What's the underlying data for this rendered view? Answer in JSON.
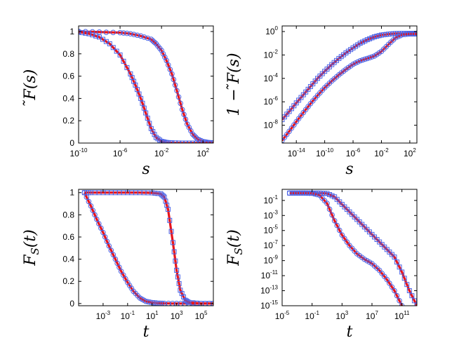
{
  "colors": {
    "fit_line": "#e8141b",
    "marker": "#4a62e6",
    "axes": "#000000"
  },
  "chart_data": [
    {
      "type": "line",
      "xlabel": "s",
      "ylabel": "̃F(s)",
      "xscale": "log",
      "yscale": "linear",
      "xlim": [
        1e-10,
        1000
      ],
      "ylim": [
        0,
        1.05
      ],
      "xticks": [
        {
          "base": "10",
          "exp": "-10"
        },
        {
          "base": "10",
          "exp": "-6"
        },
        {
          "base": "10",
          "exp": "-2"
        },
        {
          "base": "10",
          "exp": "2"
        }
      ],
      "yticks": [
        "0",
        "0.2",
        "0.4",
        "0.6",
        "0.8",
        "1"
      ],
      "grid": false,
      "series": [
        {
          "marker": "circle",
          "line": "solid",
          "x": [
            1e-10,
            1e-08,
            1e-06,
            1e-05,
            0.0001,
            0.001,
            0.003,
            0.01,
            0.03,
            0.1,
            0.3,
            1,
            3,
            10,
            30,
            100,
            300,
            1000
          ],
          "y": [
            1.0,
            0.995,
            0.99,
            0.98,
            0.96,
            0.93,
            0.89,
            0.83,
            0.74,
            0.62,
            0.47,
            0.3,
            0.17,
            0.08,
            0.035,
            0.014,
            0.005,
            0.002
          ]
        },
        {
          "marker": "square",
          "line": "solid",
          "x": [
            1e-10,
            1e-09,
            1e-08,
            1e-07,
            1e-06,
            1e-05,
            3e-05,
            0.0001,
            0.0003,
            0.001,
            0.003,
            0.01,
            0.03,
            0.1,
            1,
            10,
            100,
            1000
          ],
          "y": [
            0.995,
            0.98,
            0.95,
            0.89,
            0.79,
            0.62,
            0.52,
            0.4,
            0.27,
            0.13,
            0.05,
            0.015,
            0.005,
            0.002,
            0.0,
            0.0,
            0.0,
            0.0
          ]
        }
      ]
    },
    {
      "type": "line",
      "xlabel": "s",
      "ylabel": "1 − ̃F(s)",
      "xscale": "log",
      "yscale": "log",
      "xlim": [
        1e-16,
        1000
      ],
      "ylim": [
        3e-10,
        3
      ],
      "xticks": [
        {
          "base": "10",
          "exp": "-14"
        },
        {
          "base": "10",
          "exp": "-10"
        },
        {
          "base": "10",
          "exp": "-6"
        },
        {
          "base": "10",
          "exp": "-2"
        },
        {
          "base": "10",
          "exp": "2"
        }
      ],
      "yticks": [
        {
          "base": "10",
          "exp": "-8"
        },
        {
          "base": "10",
          "exp": "-6"
        },
        {
          "base": "10",
          "exp": "-4"
        },
        {
          "base": "10",
          "exp": "-2"
        },
        {
          "base": "10",
          "exp": "0"
        }
      ],
      "grid": false,
      "series": [
        {
          "marker": "square",
          "line": "solid",
          "x": [
            1e-16,
            1e-15,
            1e-14,
            1e-13,
            1e-12,
            1e-11,
            1e-10,
            1e-09,
            1e-08,
            1e-07,
            1e-06,
            1e-05,
            0.0001,
            0.001,
            0.01,
            0.1,
            1,
            10,
            100,
            1000
          ],
          "y": [
            3e-08,
            1.5e-07,
            8e-07,
            4e-06,
            2e-05,
            0.0001,
            0.0004,
            0.0015,
            0.005,
            0.015,
            0.04,
            0.1,
            0.2,
            0.35,
            0.5,
            0.6,
            0.68,
            0.7,
            0.7,
            0.7
          ]
        },
        {
          "marker": "circle",
          "line": "solid",
          "x": [
            1e-16,
            1e-15,
            1e-14,
            1e-13,
            1e-12,
            1e-11,
            1e-10,
            1e-09,
            1e-08,
            1e-07,
            1e-06,
            1e-05,
            0.0001,
            0.001,
            0.01,
            0.1,
            1,
            10,
            100,
            1000
          ],
          "y": [
            5e-10,
            3e-09,
            2e-08,
            1.2e-07,
            7e-07,
            3.5e-06,
            1.6e-05,
            6e-05,
            0.0002,
            0.0006,
            0.0016,
            0.0032,
            0.005,
            0.008,
            0.02,
            0.08,
            0.3,
            0.55,
            0.62,
            0.62
          ]
        }
      ]
    },
    {
      "type": "line",
      "xlabel": "t",
      "ylabel": "F_S(t)",
      "xscale": "log",
      "yscale": "linear",
      "xlim": [
        1e-05,
        1000000
      ],
      "ylim": [
        -0.02,
        1.03
      ],
      "xticks": [
        {
          "base": "10",
          "exp": "-3"
        },
        {
          "base": "10",
          "exp": "-1"
        },
        {
          "base": "10",
          "exp": "1"
        },
        {
          "base": "10",
          "exp": "3"
        },
        {
          "base": "10",
          "exp": "5"
        }
      ],
      "yticks": [
        "0",
        "0.2",
        "0.4",
        "0.6",
        "0.8",
        "1"
      ],
      "grid": false,
      "series": [
        {
          "marker": "circle",
          "line": "solid",
          "x": [
            3e-05,
            0.0001,
            0.0003,
            0.001,
            0.003,
            0.01,
            0.03,
            0.1,
            0.3,
            1,
            3,
            10,
            30,
            100,
            1000,
            10000,
            100000,
            1000000
          ],
          "y": [
            1.0,
            0.88,
            0.76,
            0.64,
            0.52,
            0.4,
            0.29,
            0.19,
            0.11,
            0.05,
            0.02,
            0.008,
            0.003,
            0.001,
            0.0,
            0.0,
            0.0,
            0.0
          ]
        },
        {
          "marker": "square",
          "line": "solid",
          "x": [
            3e-05,
            0.0001,
            0.001,
            0.01,
            0.1,
            1,
            10,
            50,
            100,
            200,
            500,
            1000,
            2000,
            5000,
            10000,
            100000,
            1000000
          ],
          "y": [
            1.0,
            1.0,
            1.0,
            1.0,
            1.0,
            1.0,
            0.998,
            0.99,
            0.96,
            0.85,
            0.55,
            0.3,
            0.12,
            0.03,
            0.01,
            0.0,
            0.0
          ]
        }
      ]
    },
    {
      "type": "line",
      "xlabel": "t",
      "ylabel": "F_S(t)",
      "xscale": "log",
      "yscale": "log",
      "xlim": [
        1e-05,
        10000000000000.0
      ],
      "ylim": [
        1e-15,
        3
      ],
      "xticks": [
        {
          "base": "10",
          "exp": "-5"
        },
        {
          "base": "10",
          "exp": "-1"
        },
        {
          "base": "10",
          "exp": "3"
        },
        {
          "base": "10",
          "exp": "7"
        },
        {
          "base": "10",
          "exp": "11"
        }
      ],
      "yticks": [
        {
          "base": "10",
          "exp": "-15"
        },
        {
          "base": "10",
          "exp": "-13"
        },
        {
          "base": "10",
          "exp": "-11"
        },
        {
          "base": "10",
          "exp": "-9"
        },
        {
          "base": "10",
          "exp": "-7"
        },
        {
          "base": "10",
          "exp": "-5"
        },
        {
          "base": "10",
          "exp": "-3"
        },
        {
          "base": "10",
          "exp": "-1"
        }
      ],
      "grid": false,
      "series": [
        {
          "marker": "square",
          "line": "solid",
          "x": [
            0.0001,
            0.001,
            0.01,
            0.1,
            1,
            10,
            100,
            1000,
            10000,
            100000,
            1000000,
            10000000,
            100000000,
            1000000000.0,
            10000000000.0,
            100000000000.0,
            1000000000000.0,
            10000000000000.0
          ],
          "y": [
            0.95,
            0.95,
            0.95,
            0.95,
            0.95,
            0.85,
            0.3,
            0.03,
            0.003,
            0.0003,
            3e-05,
            3e-06,
            3e-07,
            3e-08,
            3e-09,
            3e-11,
            1e-13,
            1e-15
          ]
        },
        {
          "marker": "circle",
          "line": "solid",
          "x": [
            0.0001,
            0.001,
            0.01,
            0.1,
            1,
            10,
            100,
            1000,
            10000,
            100000,
            1000000,
            10000000,
            100000000,
            1000000000.0,
            10000000000.0,
            100000000000.0
          ],
          "y": [
            0.95,
            0.95,
            0.95,
            0.9,
            0.5,
            0.04,
            0.0002,
            2.5e-06,
            1e-07,
            8e-09,
            1.5e-09,
            4e-10,
            5e-11,
            3e-12,
            1e-13,
            1e-15
          ]
        }
      ]
    }
  ]
}
